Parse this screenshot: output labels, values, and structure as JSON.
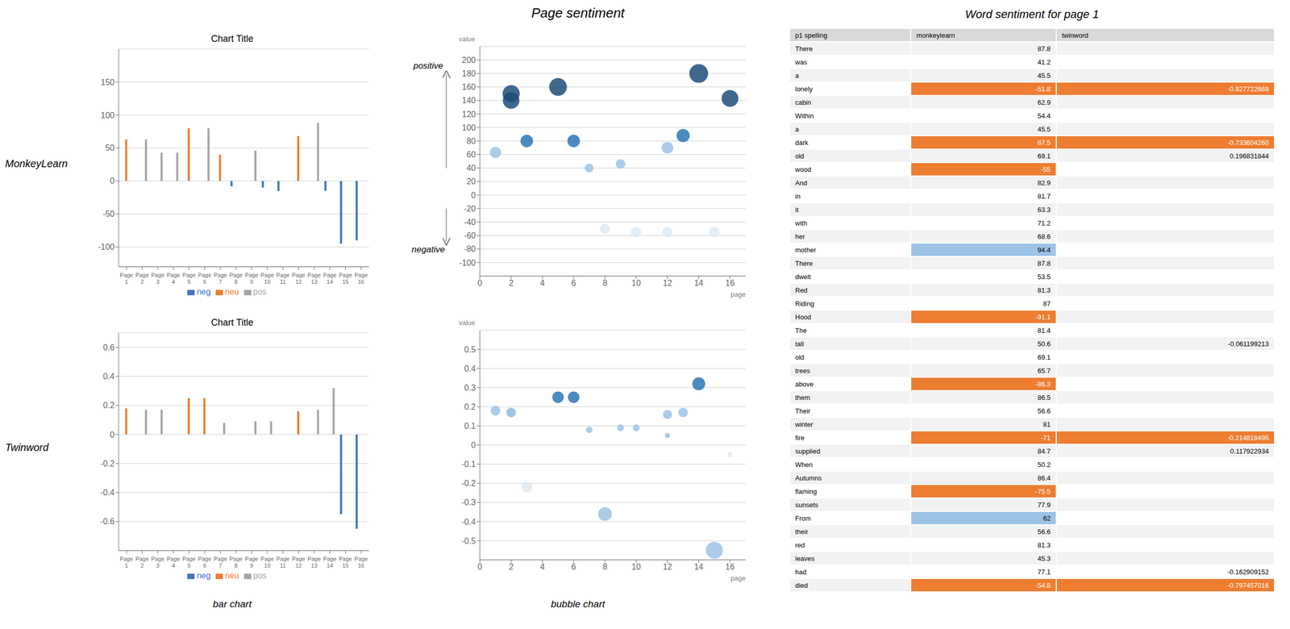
{
  "title": "Page sentiment",
  "annotations": [
    "MonkeyLearn",
    "Twinword",
    "bar chart",
    "bubble chart"
  ],
  "chart_data": [
    {
      "type": "bar",
      "title": "Chart Title",
      "categories": [
        "Page\n1",
        "Page\n2",
        "Page\n3",
        "Page\n4",
        "Page\n5",
        "Page\n6",
        "Page\n7",
        "Page\n8",
        "Page\n9",
        "Page\n10",
        "Page\n11",
        "Page\n12",
        "Page\n13",
        "Page\n14",
        "Page\n15",
        "Page\n16"
      ],
      "series": [
        {
          "name": "neg",
          "color": "#4472c4",
          "values": [
            0,
            0,
            0,
            0,
            0,
            0,
            0,
            -8,
            0,
            -10,
            -15,
            0,
            0,
            -15,
            -95,
            -90
          ]
        },
        {
          "name": "neu",
          "color": "#ed7d31",
          "values": [
            63,
            0,
            0,
            0,
            80,
            0,
            40,
            0,
            0,
            0,
            0,
            68,
            0,
            0,
            0,
            0
          ]
        },
        {
          "name": "pos",
          "color": "#a5a5a5",
          "values": [
            0,
            63,
            43,
            43,
            0,
            80,
            0,
            0,
            46,
            0,
            0,
            0,
            88,
            0,
            0,
            0
          ]
        }
      ],
      "ylim": [
        -130,
        200
      ],
      "yticks": [
        -100,
        -50,
        0,
        50,
        100,
        150
      ],
      "grid": true,
      "legend": "bottom"
    },
    {
      "type": "bar",
      "title": "Chart Title",
      "categories": [
        "Page\n1",
        "Page\n2",
        "Page\n3",
        "Page\n4",
        "Page\n5",
        "Page\n6",
        "Page\n7",
        "Page\n8",
        "Page\n9",
        "Page\n10",
        "Page\n11",
        "Page\n12",
        "Page\n13",
        "Page\n14",
        "Page\n15",
        "Page\n16"
      ],
      "series": [
        {
          "name": "neg",
          "color": "#4472c4",
          "values": [
            0,
            0,
            0,
            0,
            0,
            0,
            0,
            0,
            0,
            0,
            0,
            0,
            0,
            0,
            -0.55,
            -0.65
          ]
        },
        {
          "name": "neu",
          "color": "#ed7d31",
          "values": [
            0.18,
            0,
            0,
            0,
            0.25,
            0.25,
            0,
            0,
            0,
            0,
            0,
            0.16,
            0,
            0,
            0,
            0
          ]
        },
        {
          "name": "pos",
          "color": "#a5a5a5",
          "values": [
            0,
            0.17,
            0.17,
            0,
            0,
            0,
            0.08,
            0,
            0.09,
            0.09,
            0,
            0,
            0.17,
            0.32,
            0,
            0
          ]
        }
      ],
      "ylim": [
        -0.8,
        0.7
      ],
      "yticks": [
        -0.6,
        -0.4,
        -0.2,
        0,
        0.2,
        0.4,
        0.6
      ],
      "grid": true,
      "legend": "bottom"
    },
    {
      "type": "bubble",
      "x": [
        1,
        2,
        2,
        3,
        5,
        6,
        7,
        8,
        9,
        10,
        12,
        12,
        13,
        14,
        15,
        16
      ],
      "values": [
        63,
        150,
        140,
        80,
        160,
        80,
        40,
        -50,
        46,
        -55,
        70,
        -55,
        88,
        180,
        -55,
        143
      ],
      "sizes": [
        63,
        150,
        140,
        80,
        160,
        80,
        40,
        50,
        46,
        55,
        70,
        55,
        88,
        180,
        55,
        143
      ],
      "colors": [
        "#9dc3e6",
        "#1f4e79",
        "#1f4e79",
        "#2e75b6",
        "#1f4e79",
        "#2e75b6",
        "#9dc3e6",
        "#deeaf1",
        "#9dc3e6",
        "#deeaf1",
        "#9dc3e6",
        "#deeaf1",
        "#2e75b6",
        "#1f4e79",
        "#deeaf1",
        "#1f4e79"
      ],
      "xlim": [
        0,
        17
      ],
      "xticks": [
        0,
        2,
        4,
        6,
        8,
        10,
        12,
        14,
        16
      ],
      "ylim": [
        -120,
        220
      ],
      "yticks": [
        -100,
        -80,
        -60,
        -40,
        -20,
        0,
        20,
        40,
        60,
        80,
        100,
        120,
        140,
        160,
        180,
        200
      ],
      "grid": true,
      "xlabel": "page",
      "ylabel": "value",
      "annotations": [
        "positive",
        "negative"
      ]
    },
    {
      "type": "bubble",
      "x": [
        1,
        2,
        2,
        3,
        5,
        6,
        7,
        8,
        9,
        10,
        12,
        12,
        13,
        14,
        15,
        16
      ],
      "values": [
        0.18,
        0.17,
        0.17,
        -0.22,
        0.25,
        0.25,
        0.08,
        -0.36,
        0.09,
        0.09,
        0.16,
        0.05,
        0.17,
        0.32,
        -0.55,
        -0.05
      ],
      "sizes": [
        0.18,
        0.17,
        0.17,
        0.22,
        0.25,
        0.25,
        0.08,
        0.36,
        0.09,
        0.09,
        0.16,
        0.05,
        0.17,
        0.32,
        0.55,
        0.05
      ],
      "colors": [
        "#9dc3e6",
        "#9dc3e6",
        "#9dc3e6",
        "#deeaf1",
        "#2e75b6",
        "#2e75b6",
        "#9dc3e6",
        "#9dc3e6",
        "#9dc3e6",
        "#9dc3e6",
        "#9dc3e6",
        "#9dc3e6",
        "#9dc3e6",
        "#2e75b6",
        "#9dc3e6",
        "#deeaf1"
      ],
      "xlim": [
        0,
        17
      ],
      "xticks": [
        0,
        2,
        4,
        6,
        8,
        10,
        12,
        14,
        16
      ],
      "ylim": [
        -0.6,
        0.6
      ],
      "yticks": [
        -0.5,
        -0.4,
        -0.3,
        -0.2,
        -0.1,
        0,
        0.1,
        0.2,
        0.3,
        0.4,
        0.5
      ],
      "grid": true,
      "xlabel": "page",
      "ylabel": "value"
    },
    {
      "type": "table",
      "title": "Word sentiment for page 1",
      "xlabel": "p1 spelling",
      "categories": [
        "There",
        "was",
        "a",
        "lonely",
        "cabin",
        "Within",
        "a",
        "dark",
        "old",
        "wood",
        "And",
        "in",
        "it",
        "with",
        "her",
        "mother",
        "There",
        "dwelt",
        "Red",
        "Riding",
        "Hood",
        "The",
        "tall",
        "old",
        "trees",
        "above",
        "them",
        "Their",
        "winter",
        "fire",
        "supplied",
        "When",
        "Autumns",
        "flaming",
        "sunsets",
        "From",
        "their",
        "red",
        "leaves",
        "had",
        "died"
      ],
      "series": [
        {
          "name": "monkeylearn",
          "values": [
            87.8,
            41.2,
            45.5,
            -51.8,
            62.9,
            54.4,
            45.5,
            87.5,
            69.1,
            -55,
            82.9,
            81.7,
            63.3,
            71.2,
            68.6,
            94.4,
            87.8,
            53.5,
            81.3,
            87,
            -91.1,
            81.4,
            50.6,
            69.1,
            65.7,
            -86.3,
            86.5,
            56.6,
            81,
            -71,
            84.7,
            50.2,
            86.4,
            -75.5,
            77.9,
            62,
            56.6,
            81.3,
            45.3,
            77.1,
            -54.8
          ],
          "colors": [
            null,
            null,
            null,
            "#ed7d31",
            null,
            null,
            null,
            "#ed7d31",
            null,
            "#ed7d31",
            null,
            null,
            null,
            null,
            null,
            "#9dc3e6",
            null,
            null,
            null,
            null,
            "#ed7d31",
            null,
            null,
            null,
            null,
            "#ed7d31",
            null,
            null,
            null,
            "#ed7d31",
            null,
            null,
            null,
            "#ed7d31",
            null,
            "#9dc3e6",
            null,
            null,
            null,
            null,
            "#ed7d31"
          ]
        },
        {
          "name": "twinword",
          "values": [
            null,
            null,
            null,
            -0.927722669,
            null,
            null,
            null,
            -0.73360426,
            0.196831844,
            null,
            null,
            null,
            null,
            null,
            null,
            null,
            null,
            null,
            null,
            null,
            null,
            null,
            -0.061199213,
            null,
            null,
            null,
            null,
            null,
            null,
            -0.214818495,
            0.117922934,
            null,
            null,
            null,
            null,
            null,
            null,
            null,
            null,
            -0.162909152,
            -0.797457016
          ],
          "value_labels": [
            null,
            null,
            null,
            "-0.927722669",
            null,
            null,
            null,
            "-0.733604260",
            "0.196831844",
            null,
            null,
            null,
            null,
            null,
            null,
            null,
            null,
            null,
            null,
            null,
            null,
            null,
            "-0.061199213",
            null,
            null,
            null,
            null,
            null,
            null,
            "-0.214818495",
            "0.117922934",
            null,
            null,
            null,
            null,
            null,
            null,
            null,
            null,
            "-0.162909152",
            "-0.797457016"
          ],
          "colors": [
            null,
            null,
            null,
            "#ed7d31",
            null,
            null,
            null,
            "#ed7d31",
            null,
            null,
            null,
            null,
            null,
            null,
            null,
            null,
            null,
            null,
            null,
            null,
            null,
            null,
            null,
            null,
            null,
            null,
            null,
            null,
            null,
            "#ed7d31",
            null,
            null,
            null,
            null,
            null,
            null,
            null,
            null,
            null,
            null,
            "#ed7d31"
          ]
        }
      ]
    }
  ]
}
